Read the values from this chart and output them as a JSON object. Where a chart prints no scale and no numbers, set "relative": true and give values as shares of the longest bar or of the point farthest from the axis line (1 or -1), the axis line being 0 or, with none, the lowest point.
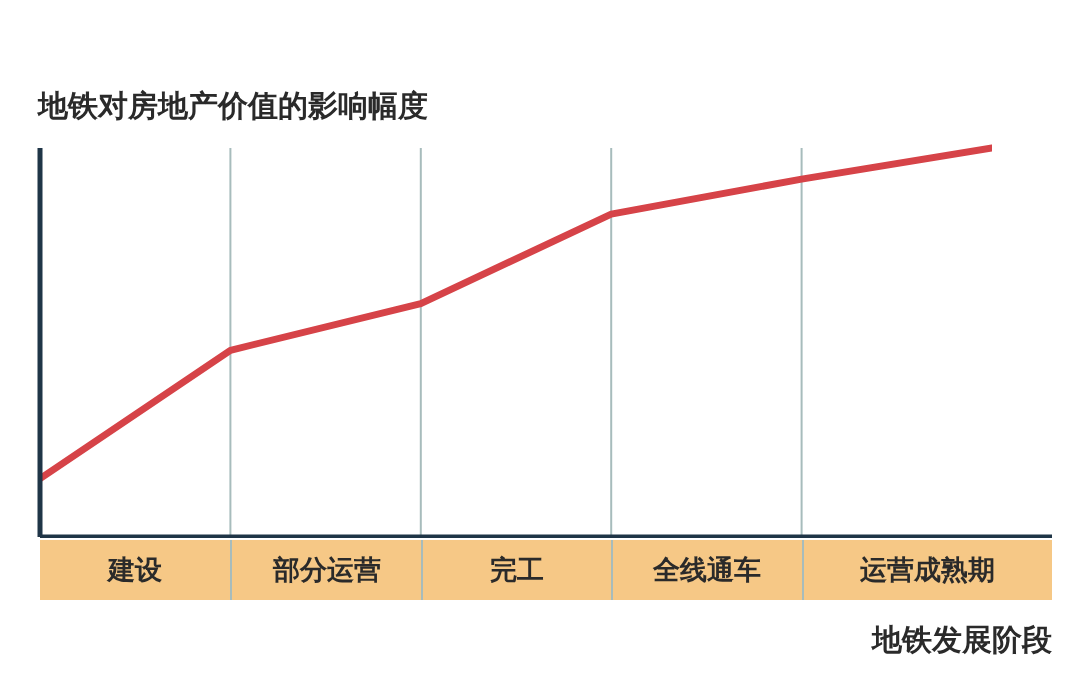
{
  "chart_data": {
    "type": "line",
    "title": "地铁对房地产价值的影响幅度",
    "xlabel": "地铁发展阶段",
    "relative": true,
    "categories": [
      null,
      null,
      null,
      null,
      null,
      null
    ],
    "series": [
      {
        "color": "#d64348",
        "values": [
          0.15,
          0.48,
          0.6,
          0.83,
          0.92,
          1
        ]
      }
    ],
    "annotations": [
      "建设",
      "部分运营",
      "完工",
      "全线通车",
      "运营成熟期"
    ],
    "grid": "x",
    "marker": "none",
    "line_style": "solid"
  }
}
